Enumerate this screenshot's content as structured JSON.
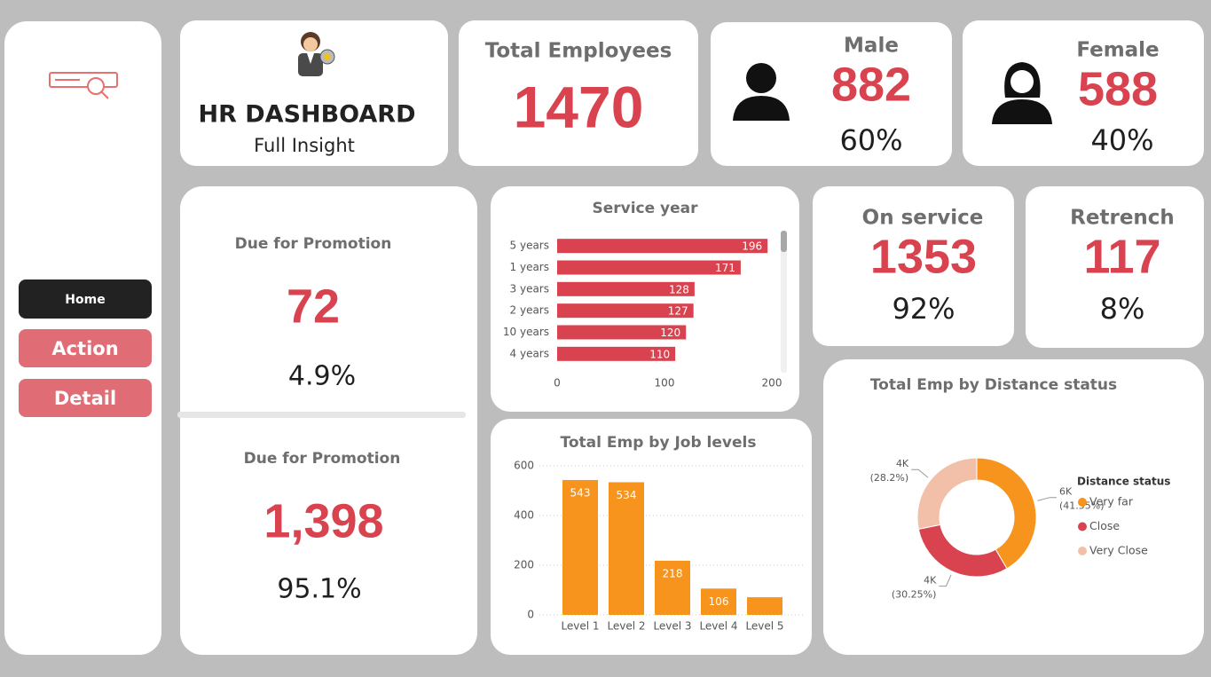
{
  "nav": {
    "buttons": [
      "Home",
      "Action",
      "Detail"
    ]
  },
  "header": {
    "title": "HR DASHBOARD",
    "subtitle": "Full Insight"
  },
  "kpis": {
    "total": {
      "label": "Total Employees",
      "value": "1470"
    },
    "male": {
      "label": "Male",
      "value": "882",
      "percent": "60%"
    },
    "female": {
      "label": "Female",
      "value": "588",
      "percent": "40%"
    },
    "on_service": {
      "label": "On service",
      "value": "1353",
      "percent": "92%"
    },
    "retrench": {
      "label": "Retrench",
      "value": "117",
      "percent": "8%"
    },
    "promotion_due": {
      "label": "Due for Promotion",
      "value": "72",
      "percent": "4.9%"
    },
    "promotion_not_due": {
      "label": "Due for Promotion",
      "value": "1,398",
      "percent": "95.1%"
    }
  },
  "chart_data": [
    {
      "type": "bar",
      "horizontal": true,
      "title": "Service year",
      "categories": [
        "5 years",
        "1 years",
        "3 years",
        "2 years",
        "10 years",
        "4 years"
      ],
      "values": [
        196,
        171,
        128,
        127,
        120,
        110
      ],
      "color": "#d9434f",
      "xlim": [
        0,
        200
      ],
      "xticks": [
        0,
        100,
        200
      ]
    },
    {
      "type": "bar",
      "title": "Total Emp by Job levels",
      "categories": [
        "Level 1",
        "Level 2",
        "Level 3",
        "Level 4",
        "Level 5"
      ],
      "values": [
        543,
        534,
        218,
        106,
        71
      ],
      "value_labels": [
        "543",
        "534",
        "218",
        "106",
        null
      ],
      "color": "#f7941d",
      "ylim": [
        0,
        600
      ],
      "yticks": [
        0,
        200,
        400,
        600
      ],
      "grid": true
    },
    {
      "type": "pie",
      "donut": true,
      "title": "Total Emp by Distance status",
      "categories": [
        "Very far",
        "Close",
        "Very Close"
      ],
      "values": [
        41.55,
        30.25,
        28.2
      ],
      "value_labels": [
        [
          "6K",
          "(41.55%)"
        ],
        [
          "4K",
          "(30.25%)"
        ],
        [
          "4K",
          "(28.2%)"
        ]
      ],
      "colors": [
        "#f7941d",
        "#d9434f",
        "#f2c0a8"
      ],
      "legend_title": "Distance status",
      "legend": "right"
    }
  ]
}
